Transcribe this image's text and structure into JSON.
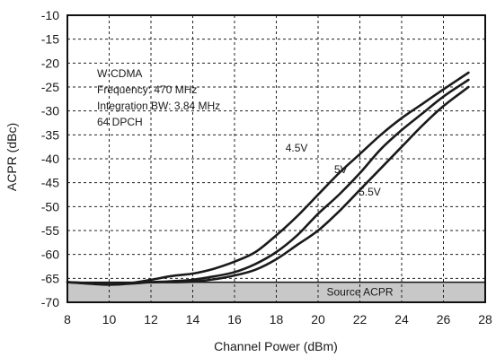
{
  "chart_data": {
    "type": "line",
    "xlabel": "Channel Power (dBm)",
    "ylabel": "ACPR (dBc)",
    "xlim": [
      8,
      28
    ],
    "ylim": [
      -70,
      -10
    ],
    "xticks": [
      8,
      10,
      12,
      14,
      16,
      18,
      20,
      22,
      24,
      26,
      28
    ],
    "yticks": [
      -10,
      -15,
      -20,
      -25,
      -30,
      -35,
      -40,
      -45,
      -50,
      -55,
      -60,
      -65,
      -70
    ],
    "grid": true,
    "annotation_lines": [
      "W-CDMA",
      "Frequency: 470 MHz",
      "Integration BW: 3.84 MHz",
      "64 DPCH"
    ],
    "band": {
      "label": "Source ACPR",
      "from": -70,
      "to": -65.8,
      "color": "#c8c8c8"
    },
    "series": [
      {
        "name": "4.5V",
        "x": [
          8,
          9,
          10,
          11,
          12,
          13,
          14,
          15,
          16,
          17,
          18,
          19,
          20,
          21,
          22,
          23,
          24,
          25,
          26,
          27.2
        ],
        "y": [
          -65.8,
          -66.1,
          -66.3,
          -66.0,
          -65.3,
          -64.5,
          -64.0,
          -63.0,
          -61.5,
          -59.5,
          -56.0,
          -52.0,
          -47.5,
          -43.0,
          -39.0,
          -35.0,
          -31.5,
          -28.5,
          -25.5,
          -22.0
        ]
      },
      {
        "name": "5V",
        "x": [
          8,
          9,
          10,
          11,
          12,
          13,
          14,
          15,
          16,
          17,
          18,
          19,
          20,
          21,
          22,
          23,
          24,
          25,
          26,
          27.2
        ],
        "y": [
          -65.8,
          -66.0,
          -66.3,
          -66.1,
          -65.8,
          -65.6,
          -65.3,
          -64.6,
          -63.7,
          -62.0,
          -59.5,
          -56.0,
          -51.5,
          -47.5,
          -43.0,
          -38.0,
          -34.0,
          -30.5,
          -27.0,
          -23.5
        ]
      },
      {
        "name": "5.5V",
        "x": [
          8,
          9,
          10,
          11,
          12,
          13,
          14,
          15,
          16,
          17,
          18,
          19,
          20,
          21,
          22,
          23,
          24,
          25,
          26,
          27.2
        ],
        "y": [
          -65.8,
          -66.0,
          -66.2,
          -66.0,
          -65.8,
          -65.8,
          -65.7,
          -65.2,
          -64.4,
          -63.2,
          -61.0,
          -58.0,
          -55.0,
          -51.0,
          -46.5,
          -42.0,
          -37.5,
          -33.0,
          -29.0,
          -25.0
        ]
      }
    ],
    "series_label_positions": {
      "4.5V": [
        19.5,
        -38.5
      ],
      "5V": [
        21.4,
        -43
      ],
      "5.5V": [
        23.0,
        -47.7
      ]
    }
  }
}
